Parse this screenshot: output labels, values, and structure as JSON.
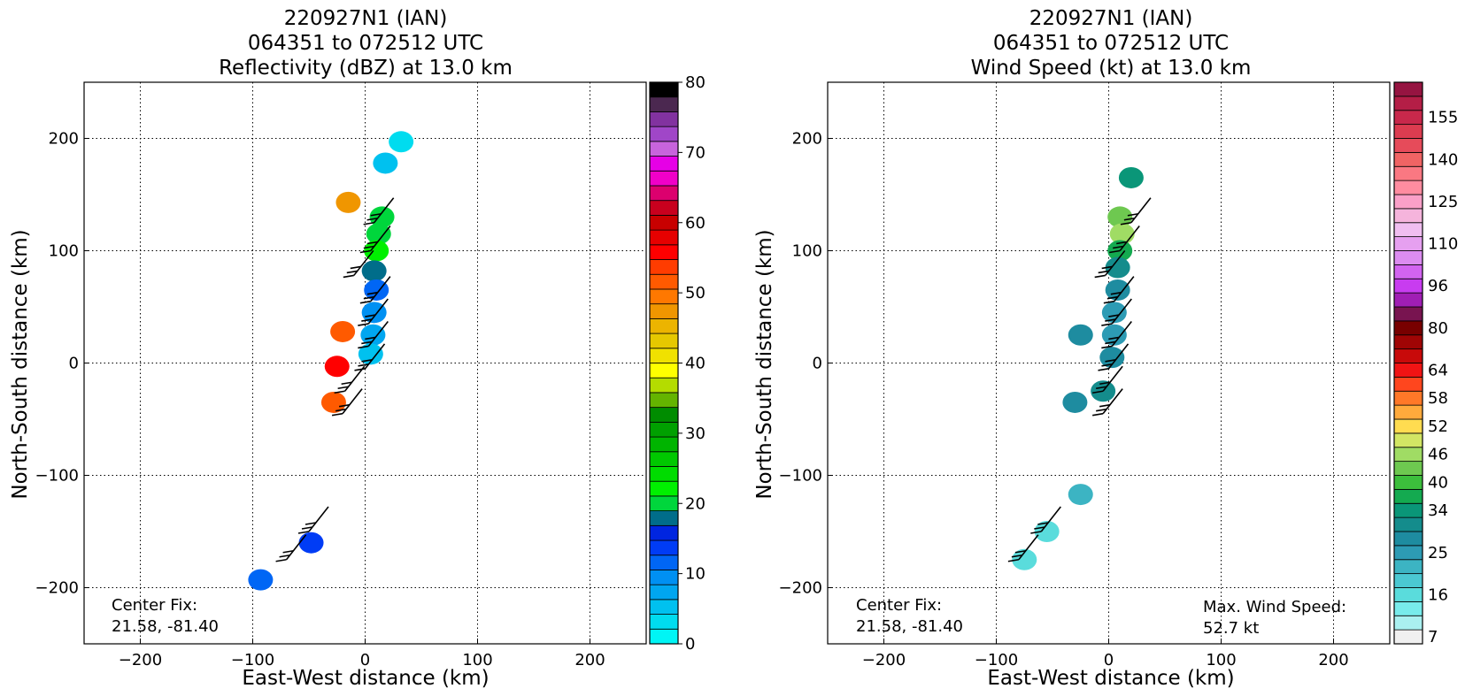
{
  "chart_data": [
    {
      "type": "heatmap",
      "title": [
        "220927N1 (IAN)",
        "064351 to 072512 UTC",
        "Reflectivity (dBZ) at 13.0 km"
      ],
      "xlabel": "East-West distance (km)",
      "ylabel": "North-South distance (km)",
      "xlim": [
        -250,
        250
      ],
      "ylim": [
        -250,
        250
      ],
      "xticks": [
        -200,
        -100,
        0,
        100,
        200
      ],
      "yticks": [
        -200,
        -100,
        0,
        100,
        200
      ],
      "xtick_labels": [
        "−200",
        "−100",
        "0",
        "100",
        "200"
      ],
      "ytick_labels": [
        "−200",
        "−100",
        "0",
        "100",
        "200"
      ],
      "grid": true,
      "annotations": [
        "Center Fix:",
        "21.58, -81.40"
      ],
      "colorbar": {
        "min": 0,
        "max": 80,
        "tick_values": [
          0,
          10,
          20,
          30,
          40,
          50,
          60,
          70,
          80
        ],
        "tick_labels": [
          "0",
          "10",
          "20",
          "30",
          "40",
          "50",
          "60",
          "70",
          "80"
        ],
        "colors": [
          "#00f5f5",
          "#00dcef",
          "#00c1ef",
          "#00a6f0",
          "#0090f2",
          "#0066f5",
          "#003cf5",
          "#0025e0",
          "#006d8a",
          "#00d63c",
          "#00f000",
          "#00dc00",
          "#00c800",
          "#00b400",
          "#00a000",
          "#008c00",
          "#64b400",
          "#b4dc00",
          "#ffff00",
          "#f0e100",
          "#e6c800",
          "#ecb400",
          "#f09600",
          "#ff7800",
          "#ff5a00",
          "#ff3c00",
          "#ff0000",
          "#e60000",
          "#c80000",
          "#c8001e",
          "#dc006e",
          "#f000c8",
          "#e600e6",
          "#c864dc",
          "#a046c8",
          "#8232a0",
          "#4b2850",
          "#000000"
        ]
      },
      "swath": [
        {
          "x": 15,
          "y": 130,
          "v": 9
        },
        {
          "x": 12,
          "y": 115,
          "v": 9
        },
        {
          "x": 10,
          "y": 100,
          "v": 10
        },
        {
          "x": 8,
          "y": 82,
          "v": 8
        },
        {
          "x": 10,
          "y": 65,
          "v": 5
        },
        {
          "x": 8,
          "y": 45,
          "v": 4
        },
        {
          "x": 7,
          "y": 25,
          "v": 3
        },
        {
          "x": 5,
          "y": 8,
          "v": 2
        },
        {
          "x": -20,
          "y": 28,
          "v": 24
        },
        {
          "x": -28,
          "y": -35,
          "v": 24
        },
        {
          "x": -25,
          "y": -3,
          "v": 26
        },
        {
          "x": -15,
          "y": 143,
          "v": 22
        },
        {
          "x": -93,
          "y": -193,
          "v": 5
        },
        {
          "x": -48,
          "y": -160,
          "v": 6
        },
        {
          "x": 18,
          "y": 178,
          "v": 2
        },
        {
          "x": 32,
          "y": 197,
          "v": 1
        }
      ],
      "wind_barbs": [
        {
          "x": 8,
          "y": 125
        },
        {
          "x": 5,
          "y": 100
        },
        {
          "x": -10,
          "y": 78
        },
        {
          "x": 5,
          "y": 55
        },
        {
          "x": 3,
          "y": 35
        },
        {
          "x": 3,
          "y": 15
        },
        {
          "x": 0,
          "y": -5
        },
        {
          "x": -18,
          "y": -25
        },
        {
          "x": -20,
          "y": -45
        },
        {
          "x": -50,
          "y": -150
        },
        {
          "x": -70,
          "y": -175
        }
      ]
    },
    {
      "type": "heatmap",
      "title": [
        "220927N1 (IAN)",
        "064351 to 072512 UTC",
        "Wind Speed (kt) at 13.0 km"
      ],
      "xlabel": "East-West distance (km)",
      "ylabel": "North-South distance (km)",
      "xlim": [
        -250,
        250
      ],
      "ylim": [
        -250,
        250
      ],
      "xticks": [
        -200,
        -100,
        0,
        100,
        200
      ],
      "yticks": [
        -200,
        -100,
        0,
        100,
        200
      ],
      "xtick_labels": [
        "−200",
        "−100",
        "0",
        "100",
        "200"
      ],
      "ytick_labels": [
        "−200",
        "−100",
        "0",
        "100",
        "200"
      ],
      "grid": true,
      "annotations": [
        "Center Fix:",
        "21.58, -81.40",
        "Max. Wind Speed:",
        "52.7 kt"
      ],
      "colorbar": {
        "tick_labels": [
          "7",
          "16",
          "25",
          "34",
          "40",
          "46",
          "52",
          "58",
          "64",
          "80",
          "96",
          "110",
          "125",
          "140",
          "155"
        ],
        "tick_bins": [
          0,
          3,
          6,
          9,
          11,
          13,
          15,
          17,
          19,
          22,
          25,
          28,
          31,
          34,
          37
        ],
        "colors": [
          "#f0f0f0",
          "#aaf0f0",
          "#78ebeb",
          "#5adcdc",
          "#4bc8d2",
          "#3cb4c3",
          "#2d9bb4",
          "#1e8ca0",
          "#148c8c",
          "#0a9678",
          "#14aa50",
          "#3cbe3c",
          "#6ec850",
          "#a0dc64",
          "#d2e664",
          "#ffdc50",
          "#ffaa3c",
          "#ff7828",
          "#ff461e",
          "#f01414",
          "#c80a0a",
          "#a00505",
          "#780000",
          "#781450",
          "#a01eb4",
          "#c83cf0",
          "#d264f0",
          "#dc8cf0",
          "#e6a0f0",
          "#f0bef0",
          "#f5b4dc",
          "#faa0c8",
          "#ff8ca0",
          "#fa7882",
          "#f06464",
          "#e64b5a",
          "#dc3c50",
          "#c8284b",
          "#b41e46",
          "#961441"
        ]
      },
      "swath": [
        {
          "x": 20,
          "y": 165,
          "v": 9
        },
        {
          "x": 10,
          "y": 130,
          "v": 12
        },
        {
          "x": 12,
          "y": 115,
          "v": 13
        },
        {
          "x": 10,
          "y": 100,
          "v": 10
        },
        {
          "x": 8,
          "y": 85,
          "v": 8
        },
        {
          "x": 8,
          "y": 65,
          "v": 7
        },
        {
          "x": 5,
          "y": 45,
          "v": 6
        },
        {
          "x": 5,
          "y": 25,
          "v": 6
        },
        {
          "x": 3,
          "y": 5,
          "v": 7
        },
        {
          "x": -5,
          "y": -25,
          "v": 8
        },
        {
          "x": -25,
          "y": 25,
          "v": 7
        },
        {
          "x": -30,
          "y": -35,
          "v": 7
        },
        {
          "x": -25,
          "y": -117,
          "v": 5
        },
        {
          "x": -55,
          "y": -150,
          "v": 3
        },
        {
          "x": -75,
          "y": -175,
          "v": 3
        }
      ],
      "wind_barbs": [
        {
          "x": 20,
          "y": 125
        },
        {
          "x": 10,
          "y": 100
        },
        {
          "x": -3,
          "y": 78
        },
        {
          "x": 5,
          "y": 55
        },
        {
          "x": 3,
          "y": 35
        },
        {
          "x": 3,
          "y": 15
        },
        {
          "x": 0,
          "y": -5
        },
        {
          "x": -5,
          "y": -25
        },
        {
          "x": -5,
          "y": -45
        },
        {
          "x": -60,
          "y": -150
        },
        {
          "x": -80,
          "y": -175
        }
      ]
    }
  ]
}
